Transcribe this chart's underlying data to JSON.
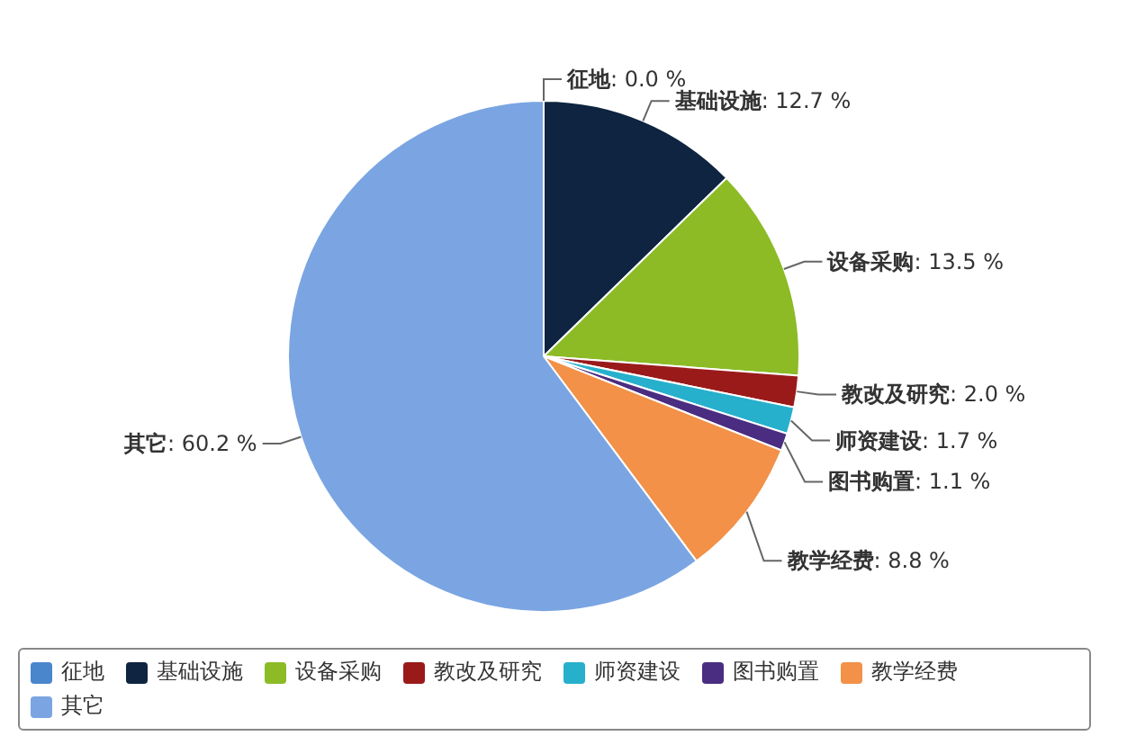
{
  "chart_data": {
    "type": "pie",
    "categories": [
      "征地",
      "基础设施",
      "设备采购",
      "教改及研究",
      "师资建设",
      "图书购置",
      "教学经费",
      "其它"
    ],
    "values": [
      0.0,
      12.7,
      13.5,
      2.0,
      1.7,
      1.1,
      8.8,
      60.2
    ],
    "value_labels": [
      ": 0.0 %",
      ": 12.7 %",
      ": 13.5 %",
      ": 2.0 %",
      ": 1.7 %",
      ": 1.1 %",
      ": 8.8 %",
      ": 60.2 %"
    ],
    "colors": [
      "#4a86cc",
      "#0e2440",
      "#8cbb26",
      "#9a1a1a",
      "#26b0cc",
      "#4a2d80",
      "#f29147",
      "#7aa5e2"
    ],
    "legend": "bottom"
  }
}
